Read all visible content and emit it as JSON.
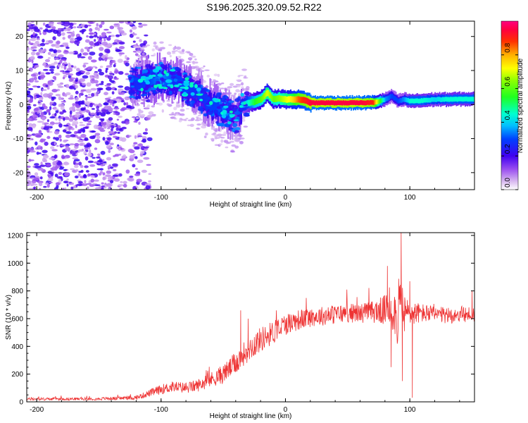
{
  "title": "S196.2025.320.09.52.R22",
  "chart_data": [
    {
      "type": "heatmap",
      "name": "spectrogram",
      "xlabel": "Height of straight line (km)",
      "ylabel": "Frequency (Hz)",
      "xlim": [
        -208,
        152
      ],
      "ylim": [
        -25,
        24.5
      ],
      "xticks": [
        -200,
        -100,
        0,
        100
      ],
      "yticks": [
        -20,
        -10,
        0,
        10,
        20
      ],
      "colorbar": {
        "label": "Normalized spectral amplitude",
        "range": [
          0,
          1
        ],
        "ticks": [
          "0.0",
          "0.2",
          "0.4",
          "0.6",
          "0.8"
        ],
        "tick_values": [
          0.0,
          0.2,
          0.4,
          0.6,
          0.8
        ]
      },
      "ridge": {
        "x": [
          -125,
          -110,
          -100,
          -90,
          -80,
          -70,
          -60,
          -50,
          -45,
          -40,
          -35,
          -30,
          -25,
          -20,
          -15,
          -10,
          -5,
          0,
          5,
          10,
          15,
          20,
          40,
          60,
          70,
          75,
          80,
          85,
          90,
          95,
          100,
          110,
          120,
          130,
          140,
          152
        ],
        "freq": [
          6,
          7,
          8,
          7,
          5,
          3,
          0,
          -2,
          -3,
          -4,
          0,
          0.5,
          0.8,
          1.5,
          3.5,
          1.5,
          1.8,
          1.5,
          1.5,
          1.5,
          1.2,
          0.5,
          0.5,
          0.5,
          0.6,
          1,
          1.5,
          2.5,
          1,
          1.5,
          1,
          1.2,
          1.5,
          1.5,
          1.6,
          1.6
        ],
        "amplitude": [
          0.25,
          0.3,
          0.35,
          0.3,
          0.3,
          0.25,
          0.3,
          0.3,
          0.25,
          0.15,
          0.35,
          0.45,
          0.55,
          0.6,
          0.7,
          0.6,
          0.65,
          0.7,
          0.75,
          0.85,
          0.9,
          0.95,
          0.95,
          0.95,
          0.9,
          0.6,
          0.35,
          0.3,
          0.3,
          0.35,
          0.45,
          0.45,
          0.4,
          0.45,
          0.45,
          0.45
        ]
      }
    },
    {
      "type": "line",
      "name": "snr",
      "xlabel": "Height of straight line (km)",
      "ylabel": "SNR (10 * v/v)",
      "xlim": [
        -208,
        152
      ],
      "ylim": [
        0,
        1220
      ],
      "xticks": [
        -200,
        -100,
        0,
        100
      ],
      "yticks": [
        0,
        200,
        400,
        600,
        800,
        1000,
        1200
      ],
      "series": [
        {
          "name": "SNR",
          "color": "#ee3333",
          "x": [
            -208,
            -150,
            -120,
            -110,
            -100,
            -90,
            -80,
            -70,
            -60,
            -50,
            -40,
            -30,
            -20,
            -10,
            0,
            10,
            20,
            30,
            40,
            50,
            60,
            70,
            80,
            85,
            88,
            90,
            92,
            93,
            95,
            97,
            100,
            110,
            120,
            130,
            140,
            152
          ],
          "y": [
            20,
            22,
            30,
            60,
            90,
            110,
            100,
            120,
            160,
            200,
            280,
            380,
            450,
            500,
            560,
            590,
            610,
            620,
            630,
            640,
            640,
            650,
            660,
            690,
            640,
            600,
            700,
            720,
            620,
            640,
            640,
            640,
            630,
            620,
            630,
            630
          ],
          "spread": [
            10,
            10,
            15,
            25,
            35,
            40,
            40,
            45,
            55,
            70,
            80,
            90,
            90,
            85,
            80,
            75,
            70,
            70,
            70,
            70,
            70,
            80,
            110,
            150,
            180,
            200,
            260,
            250,
            160,
            120,
            90,
            70,
            60,
            60,
            60,
            60
          ],
          "peaks": [
            {
              "x": -36,
              "y": 660
            },
            {
              "x": -30,
              "y": 600
            },
            {
              "x": 82,
              "y": 980
            },
            {
              "x": 93,
              "y": 1220
            },
            {
              "x": 100,
              "y": 870
            },
            {
              "x": 150,
              "y": 800
            }
          ],
          "dips": [
            {
              "x": 85,
              "y": 250
            },
            {
              "x": 94,
              "y": 150
            },
            {
              "x": 102,
              "y": 30
            }
          ]
        }
      ]
    }
  ]
}
